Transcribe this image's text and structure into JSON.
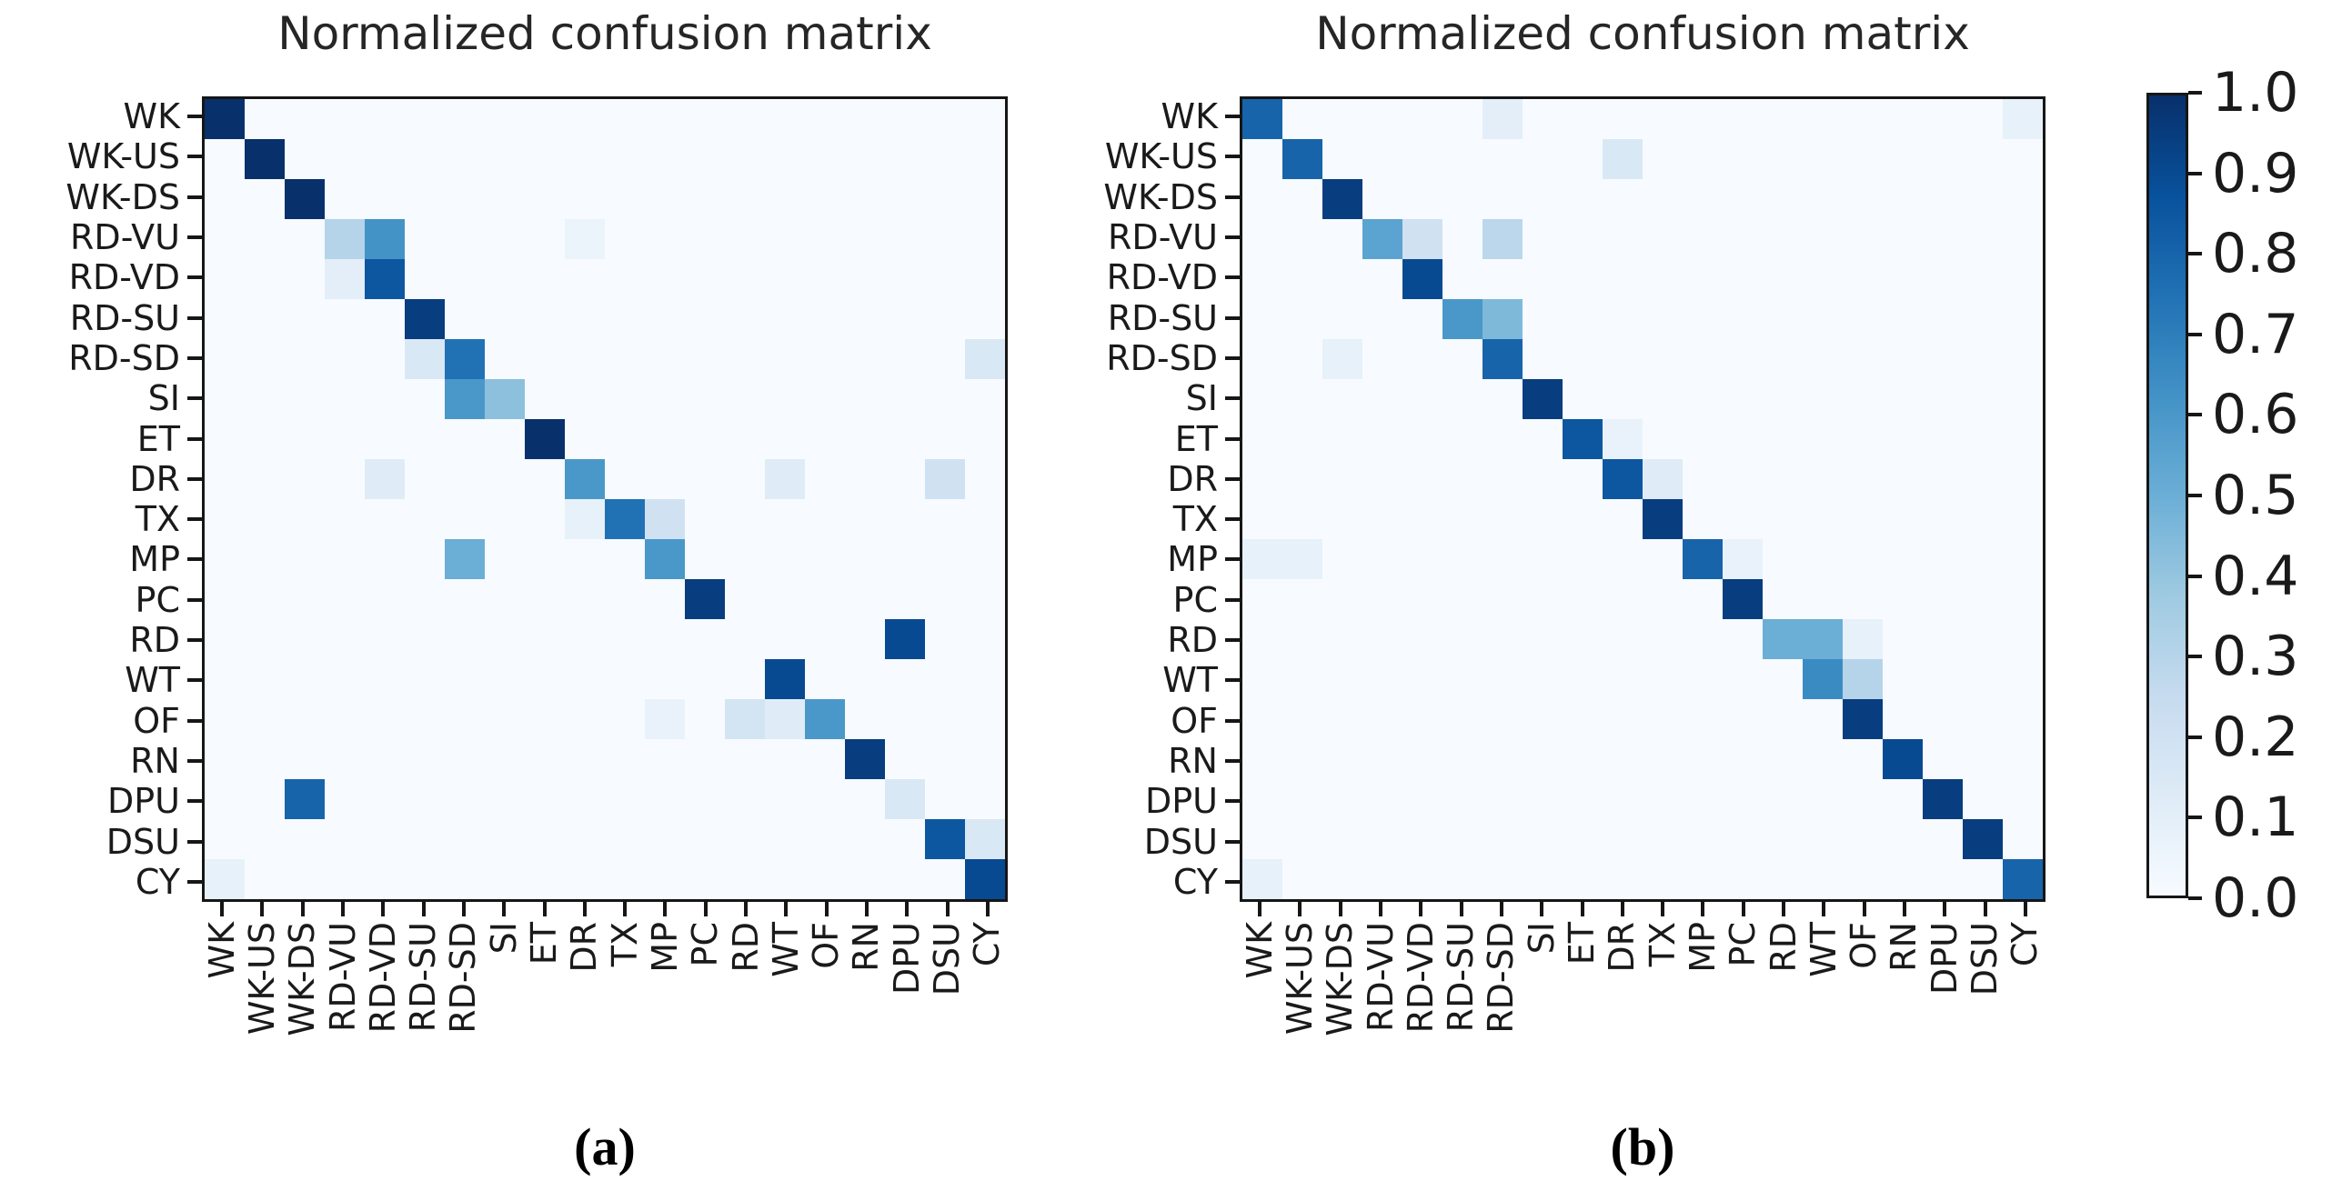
{
  "figure": {
    "background": "#ffffff"
  },
  "class_labels": [
    "WK",
    "WK-US",
    "WK-DS",
    "RD-VU",
    "RD-VD",
    "RD-SU",
    "RD-SD",
    "SI",
    "ET",
    "DR",
    "TX",
    "MP",
    "PC",
    "RD",
    "WT",
    "OF",
    "RN",
    "DPU",
    "DSU",
    "CY"
  ],
  "panels": [
    {
      "title": "Normalized confusion matrix",
      "caption": "(a)"
    },
    {
      "title": "Normalized confusion matrix",
      "caption": "(b)"
    }
  ],
  "colorbar": {
    "tick_labels": [
      "1.0",
      "0.9",
      "0.8",
      "0.7",
      "0.6",
      "0.5",
      "0.4",
      "0.3",
      "0.2",
      "0.1",
      "0.0"
    ],
    "min": 0.0,
    "max": 1.0,
    "colormap": "Blues"
  },
  "colors": {
    "axis": "#161616",
    "text": "#262626",
    "cell_zero": "#f7fbff",
    "cmap_stops": [
      [
        0.0,
        "#f7fbff"
      ],
      [
        0.125,
        "#deebf7"
      ],
      [
        0.25,
        "#c6dbef"
      ],
      [
        0.375,
        "#9ecae1"
      ],
      [
        0.5,
        "#6baed6"
      ],
      [
        0.625,
        "#4292c6"
      ],
      [
        0.75,
        "#2171b5"
      ],
      [
        0.875,
        "#08519c"
      ],
      [
        1.0,
        "#08306b"
      ]
    ]
  },
  "chart_data": [
    {
      "type": "heatmap",
      "title": "Normalized confusion matrix",
      "x_categories": [
        "WK",
        "WK-US",
        "WK-DS",
        "RD-VU",
        "RD-VD",
        "RD-SU",
        "RD-SD",
        "SI",
        "ET",
        "DR",
        "TX",
        "MP",
        "PC",
        "RD",
        "WT",
        "OF",
        "RN",
        "DPU",
        "DSU",
        "CY"
      ],
      "y_categories": [
        "WK",
        "WK-US",
        "WK-DS",
        "RD-VU",
        "RD-VD",
        "RD-SU",
        "RD-SD",
        "SI",
        "ET",
        "DR",
        "TX",
        "MP",
        "PC",
        "RD",
        "WT",
        "OF",
        "RN",
        "DPU",
        "DSU",
        "CY"
      ],
      "value_range": [
        0,
        1
      ],
      "default_value": 0,
      "cells": [
        [
          0,
          0,
          1.0
        ],
        [
          1,
          1,
          1.0
        ],
        [
          2,
          2,
          1.0
        ],
        [
          3,
          3,
          0.3
        ],
        [
          3,
          4,
          0.62
        ],
        [
          3,
          9,
          0.06
        ],
        [
          4,
          3,
          0.1
        ],
        [
          4,
          4,
          0.85
        ],
        [
          5,
          5,
          0.95
        ],
        [
          6,
          5,
          0.15
        ],
        [
          6,
          6,
          0.75
        ],
        [
          6,
          19,
          0.15
        ],
        [
          7,
          6,
          0.6
        ],
        [
          7,
          7,
          0.42
        ],
        [
          8,
          8,
          1.0
        ],
        [
          9,
          4,
          0.12
        ],
        [
          9,
          9,
          0.6
        ],
        [
          9,
          14,
          0.12
        ],
        [
          9,
          18,
          0.2
        ],
        [
          10,
          9,
          0.08
        ],
        [
          10,
          10,
          0.75
        ],
        [
          10,
          11,
          0.2
        ],
        [
          11,
          6,
          0.5
        ],
        [
          11,
          11,
          0.6
        ],
        [
          12,
          12,
          0.95
        ],
        [
          13,
          17,
          0.9
        ],
        [
          14,
          14,
          0.9
        ],
        [
          15,
          11,
          0.07
        ],
        [
          15,
          13,
          0.18
        ],
        [
          15,
          14,
          0.12
        ],
        [
          15,
          15,
          0.6
        ],
        [
          16,
          16,
          0.95
        ],
        [
          17,
          2,
          0.8
        ],
        [
          17,
          17,
          0.15
        ],
        [
          18,
          18,
          0.85
        ],
        [
          18,
          19,
          0.15
        ],
        [
          19,
          0,
          0.08
        ],
        [
          19,
          19,
          0.9
        ]
      ]
    },
    {
      "type": "heatmap",
      "title": "Normalized confusion matrix",
      "x_categories": [
        "WK",
        "WK-US",
        "WK-DS",
        "RD-VU",
        "RD-VD",
        "RD-SU",
        "RD-SD",
        "SI",
        "ET",
        "DR",
        "TX",
        "MP",
        "PC",
        "RD",
        "WT",
        "OF",
        "RN",
        "DPU",
        "DSU",
        "CY"
      ],
      "y_categories": [
        "WK",
        "WK-US",
        "WK-DS",
        "RD-VU",
        "RD-VD",
        "RD-SU",
        "RD-SD",
        "SI",
        "ET",
        "DR",
        "TX",
        "MP",
        "PC",
        "RD",
        "WT",
        "OF",
        "RN",
        "DPU",
        "DSU",
        "CY"
      ],
      "value_range": [
        0,
        1
      ],
      "default_value": 0,
      "cells": [
        [
          0,
          0,
          0.8
        ],
        [
          0,
          6,
          0.1
        ],
        [
          0,
          19,
          0.08
        ],
        [
          1,
          1,
          0.8
        ],
        [
          1,
          9,
          0.15
        ],
        [
          2,
          2,
          0.95
        ],
        [
          3,
          3,
          0.55
        ],
        [
          3,
          4,
          0.2
        ],
        [
          3,
          6,
          0.28
        ],
        [
          4,
          4,
          0.9
        ],
        [
          5,
          5,
          0.6
        ],
        [
          5,
          6,
          0.45
        ],
        [
          6,
          2,
          0.08
        ],
        [
          6,
          6,
          0.8
        ],
        [
          7,
          7,
          0.95
        ],
        [
          8,
          8,
          0.85
        ],
        [
          8,
          9,
          0.07
        ],
        [
          9,
          9,
          0.85
        ],
        [
          9,
          10,
          0.12
        ],
        [
          10,
          10,
          0.95
        ],
        [
          11,
          0,
          0.08
        ],
        [
          11,
          1,
          0.08
        ],
        [
          11,
          11,
          0.8
        ],
        [
          11,
          12,
          0.07
        ],
        [
          12,
          12,
          0.95
        ],
        [
          13,
          13,
          0.5
        ],
        [
          13,
          14,
          0.5
        ],
        [
          13,
          15,
          0.08
        ],
        [
          14,
          14,
          0.65
        ],
        [
          14,
          15,
          0.3
        ],
        [
          15,
          15,
          0.95
        ],
        [
          16,
          16,
          0.9
        ],
        [
          17,
          17,
          0.95
        ],
        [
          18,
          18,
          0.95
        ],
        [
          19,
          0,
          0.08
        ],
        [
          19,
          19,
          0.8
        ]
      ]
    }
  ]
}
